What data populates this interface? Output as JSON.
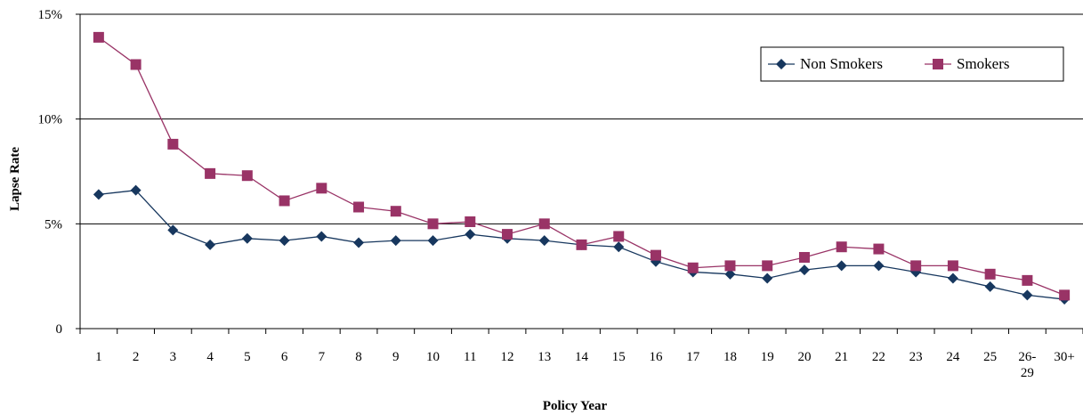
{
  "chart_data": {
    "type": "line",
    "title": "",
    "xlabel": "Policy Year",
    "ylabel": "Lapse Rate",
    "categories": [
      "1",
      "2",
      "3",
      "4",
      "5",
      "6",
      "7",
      "8",
      "9",
      "10",
      "11",
      "12",
      "13",
      "14",
      "15",
      "16",
      "17",
      "18",
      "19",
      "20",
      "21",
      "22",
      "23",
      "24",
      "25",
      "26-29",
      "30+"
    ],
    "ylim": [
      0,
      15
    ],
    "yticks": [
      {
        "value": 0,
        "label": "0"
      },
      {
        "value": 5,
        "label": "5%"
      },
      {
        "value": 10,
        "label": "10%"
      },
      {
        "value": 15,
        "label": "15%"
      }
    ],
    "grid": "horizontal",
    "legend_position": "top-right",
    "series": [
      {
        "name": "Non Smokers",
        "color": "#17375E",
        "marker": "diamond",
        "values": [
          6.4,
          6.6,
          4.7,
          4.0,
          4.3,
          4.2,
          4.4,
          4.1,
          4.2,
          4.2,
          4.5,
          4.3,
          4.2,
          4.0,
          3.9,
          3.2,
          2.7,
          2.6,
          2.4,
          2.8,
          3.0,
          3.0,
          2.7,
          2.4,
          2.0,
          1.6,
          1.4
        ]
      },
      {
        "name": "Smokers",
        "color": "#993366",
        "marker": "square",
        "values": [
          13.9,
          12.6,
          8.8,
          7.4,
          7.3,
          6.1,
          6.7,
          5.8,
          5.6,
          5.0,
          5.1,
          4.5,
          5.0,
          4.0,
          4.4,
          3.5,
          2.9,
          3.0,
          3.0,
          3.4,
          3.9,
          3.8,
          3.0,
          3.0,
          2.6,
          2.3,
          1.6
        ]
      }
    ]
  }
}
